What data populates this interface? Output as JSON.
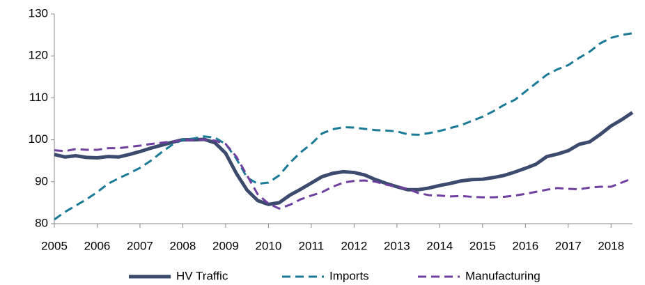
{
  "chart_data": {
    "type": "line",
    "x": [
      2005,
      2005.25,
      2005.5,
      2005.75,
      2006,
      2006.25,
      2006.5,
      2006.75,
      2007,
      2007.25,
      2007.5,
      2007.75,
      2008,
      2008.25,
      2008.5,
      2008.75,
      2009,
      2009.25,
      2009.5,
      2009.75,
      2010,
      2010.25,
      2010.5,
      2010.75,
      2011,
      2011.25,
      2011.5,
      2011.75,
      2012,
      2012.25,
      2012.5,
      2012.75,
      2013,
      2013.25,
      2013.5,
      2013.75,
      2014,
      2014.25,
      2014.5,
      2014.75,
      2015,
      2015.25,
      2015.5,
      2015.75,
      2016,
      2016.25,
      2016.5,
      2016.75,
      2017,
      2017.25,
      2017.5,
      2017.75,
      2018,
      2018.25,
      2018.5
    ],
    "series": [
      {
        "name": "HV Traffic",
        "color": "#3c4a6e",
        "dash": "solid",
        "values": [
          96.5,
          95.9,
          96.2,
          95.8,
          95.7,
          96.0,
          95.9,
          96.5,
          97.2,
          98.0,
          98.7,
          99.4,
          100,
          100,
          100.1,
          99.3,
          96.8,
          92,
          88,
          85.5,
          84.6,
          85,
          86.8,
          88.2,
          89.7,
          91.2,
          92,
          92.4,
          92.2,
          91.6,
          90.5,
          89.6,
          88.8,
          88.1,
          88.1,
          88.5,
          89.1,
          89.6,
          90.2,
          90.5,
          90.6,
          91,
          91.5,
          92.3,
          93.2,
          94.2,
          96,
          96.6,
          97.4,
          98.9,
          99.5,
          101.3,
          103.3,
          104.8,
          106.5
        ]
      },
      {
        "name": "Imports",
        "color": "#1a7a96",
        "dash": "dashed",
        "values": [
          81,
          82.8,
          84.3,
          85.8,
          87.5,
          89.5,
          90.8,
          92,
          93.3,
          95,
          97,
          98.8,
          100,
          100.3,
          100.8,
          100.5,
          99,
          95.5,
          91,
          89.5,
          89.8,
          91.5,
          94.5,
          97,
          99,
          101.5,
          102.5,
          103,
          102.9,
          102.6,
          102.3,
          102.2,
          102,
          101.3,
          101.2,
          101.6,
          102.1,
          102.8,
          103.5,
          104.5,
          105.5,
          106.8,
          108.3,
          109.5,
          111.5,
          113.5,
          115.5,
          116.8,
          117.8,
          119.5,
          121,
          123,
          124.3,
          125,
          125.4
        ]
      },
      {
        "name": "Manufacturing",
        "color": "#7040a0",
        "dash": "dashed",
        "values": [
          97.5,
          97.3,
          97.8,
          97.6,
          97.6,
          98,
          98,
          98.3,
          98.6,
          99,
          99.3,
          99.6,
          99.8,
          100,
          100,
          99.8,
          99,
          96,
          91.5,
          87,
          84.8,
          83.6,
          84.5,
          85.8,
          86.7,
          87.5,
          88.8,
          89.8,
          90.2,
          90.3,
          90,
          89.3,
          88.8,
          88.3,
          87.3,
          86.8,
          86.7,
          86.5,
          86.6,
          86.4,
          86.3,
          86.3,
          86.4,
          86.7,
          87.1,
          87.6,
          88.1,
          88.5,
          88.3,
          88.2,
          88.6,
          88.8,
          88.8,
          89.8,
          90.8
        ]
      }
    ],
    "xlim": [
      2005,
      2018.5
    ],
    "xticks": [
      2005,
      2006,
      2007,
      2008,
      2009,
      2010,
      2011,
      2012,
      2013,
      2014,
      2015,
      2016,
      2017,
      2018
    ],
    "ylim": [
      80,
      130
    ],
    "yticks": [
      80,
      90,
      100,
      110,
      120,
      130
    ],
    "grid": false,
    "legend": "bottom"
  }
}
